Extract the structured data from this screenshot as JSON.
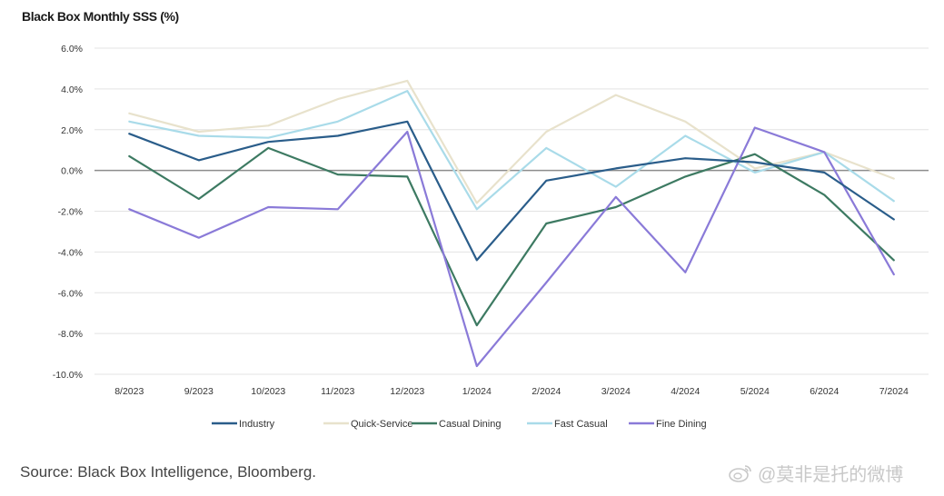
{
  "title": "Black Box Monthly SSS (%)",
  "source": "Source: Black Box Intelligence, Bloomberg.",
  "watermark": "@莫非是托的微博",
  "chart_data": {
    "type": "line",
    "title": "Black Box Monthly SSS (%)",
    "xlabel": "",
    "ylabel": "",
    "categories": [
      "8/2023",
      "9/2023",
      "10/2023",
      "11/2023",
      "12/2023",
      "1/2024",
      "2/2024",
      "3/2024",
      "4/2024",
      "5/2024",
      "6/2024",
      "7/2024"
    ],
    "y_ticks": [
      6,
      4,
      2,
      0,
      -2,
      -4,
      -6,
      -8,
      -10
    ],
    "y_tick_labels": [
      "6.0%",
      "4.0%",
      "2.0%",
      "0.0%",
      "-2.0%",
      "-4.0%",
      "-6.0%",
      "-8.0%",
      "-10.0%"
    ],
    "ylim": [
      -10,
      6
    ],
    "grid": true,
    "legend_position": "bottom",
    "series": [
      {
        "name": "Industry",
        "color": "#2a5d8a",
        "values": [
          1.8,
          0.5,
          1.4,
          1.7,
          2.4,
          -4.4,
          -0.5,
          0.1,
          0.6,
          0.4,
          -0.1,
          -2.4
        ]
      },
      {
        "name": "Quick-Service",
        "color": "#e8e2cc",
        "values": [
          2.8,
          1.9,
          2.2,
          3.5,
          4.4,
          -1.6,
          1.9,
          3.7,
          2.4,
          0.1,
          0.9,
          -0.4
        ]
      },
      {
        "name": "Casual Dining",
        "color": "#3d7a62",
        "values": [
          0.7,
          -1.4,
          1.1,
          -0.2,
          -0.3,
          -7.6,
          -2.6,
          -1.8,
          -0.3,
          0.8,
          -1.2,
          -4.4
        ]
      },
      {
        "name": "Fast Casual",
        "color": "#a9dbe9",
        "values": [
          2.4,
          1.7,
          1.6,
          2.4,
          3.9,
          -1.9,
          1.1,
          -0.8,
          1.7,
          -0.1,
          0.9,
          -1.5
        ]
      },
      {
        "name": "Fine Dining",
        "color": "#8a7ad8",
        "values": [
          -1.9,
          -3.3,
          -1.8,
          -1.9,
          1.9,
          -9.6,
          -5.5,
          -1.3,
          -5.0,
          2.1,
          0.9,
          -5.1
        ]
      }
    ]
  }
}
